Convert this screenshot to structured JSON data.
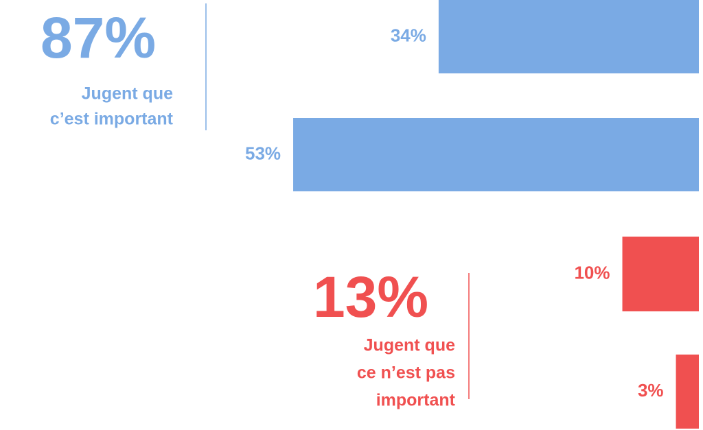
{
  "chart_data": {
    "type": "hbar",
    "categories": [
      null,
      null,
      null,
      null
    ],
    "values": [
      34,
      53,
      10,
      3
    ],
    "value_labels": [
      "34%",
      "53%",
      "10%",
      "3%"
    ],
    "colors": [
      "#7aaae4",
      "#7aaae4",
      "#f05050",
      "#f05050"
    ],
    "summaries": [
      {
        "label": "87%",
        "lines": [
          "Jugent que",
          "c’est important"
        ],
        "color": "#7aaae4"
      },
      {
        "label": "13%",
        "lines": [
          "Jugent que",
          "ce n’est pas",
          "important"
        ],
        "color": "#f05050"
      }
    ]
  }
}
